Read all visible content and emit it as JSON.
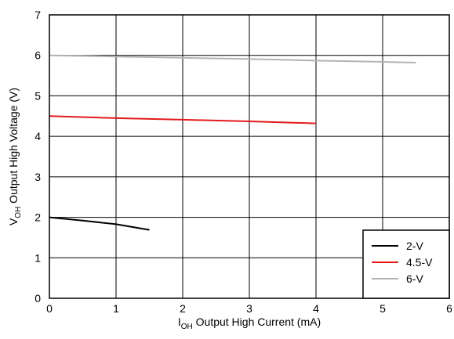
{
  "chart_data": {
    "type": "line",
    "title": "",
    "xlabel": {
      "main": "I",
      "sub": "OH",
      "rest": " Output High Current (mA)"
    },
    "ylabel": {
      "main": "V",
      "sub": "OH",
      "rest": " Output High Voltage (V)"
    },
    "xlim": [
      0,
      6
    ],
    "ylim": [
      0,
      7
    ],
    "xticks": [
      "0",
      "1",
      "2",
      "3",
      "4",
      "5",
      "6"
    ],
    "yticks": [
      "0",
      "1",
      "2",
      "3",
      "4",
      "5",
      "6",
      "7"
    ],
    "grid": true,
    "legend_position": "bottom-right",
    "series": [
      {
        "name": "2-V",
        "color": "#000000",
        "x": [
          0,
          0.5,
          1,
          1.5
        ],
        "y": [
          2.0,
          1.92,
          1.83,
          1.69
        ]
      },
      {
        "name": "4.5-V",
        "color": "#e31a1c",
        "x": [
          0,
          1,
          2,
          3,
          4
        ],
        "y": [
          4.5,
          4.45,
          4.41,
          4.37,
          4.32
        ]
      },
      {
        "name": "6-V",
        "color": "#b3b3b3",
        "x": [
          0,
          1,
          2,
          3,
          4,
          5,
          5.5
        ],
        "y": [
          6.0,
          5.97,
          5.94,
          5.91,
          5.87,
          5.84,
          5.82
        ]
      }
    ]
  }
}
